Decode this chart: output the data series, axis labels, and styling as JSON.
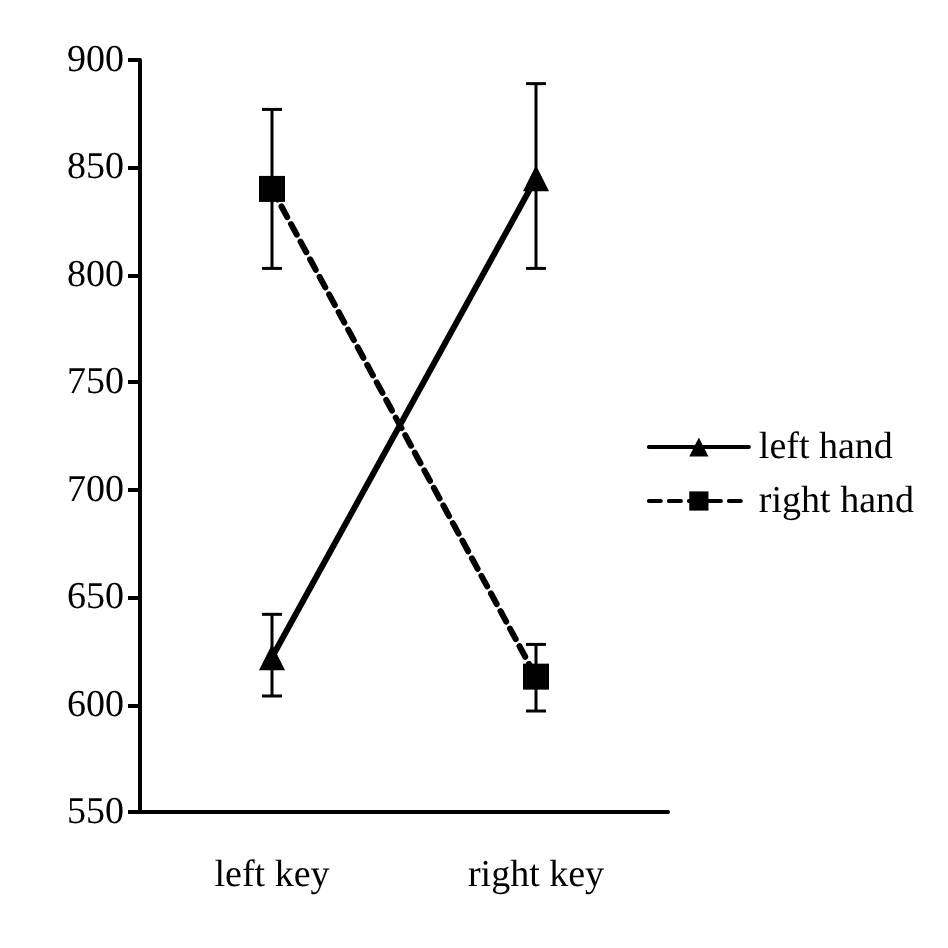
{
  "chart_data": {
    "type": "line",
    "categories": [
      "left key",
      "right key"
    ],
    "series": [
      {
        "name": "left hand",
        "color": "#000000",
        "marker": "triangle",
        "line_style": "solid",
        "values": [
          622,
          845
        ],
        "errors": [
          [
            604,
            642
          ],
          [
            803,
            889
          ]
        ]
      },
      {
        "name": "right hand",
        "color": "#000000",
        "marker": "square",
        "line_style": "dashed",
        "values": [
          840,
          613
        ],
        "errors": [
          [
            803,
            877
          ],
          [
            597,
            628
          ]
        ]
      }
    ],
    "ylim": [
      550,
      900
    ],
    "yticks": [
      550,
      600,
      650,
      700,
      750,
      800,
      850,
      900
    ],
    "grid": false,
    "legend": "right"
  }
}
